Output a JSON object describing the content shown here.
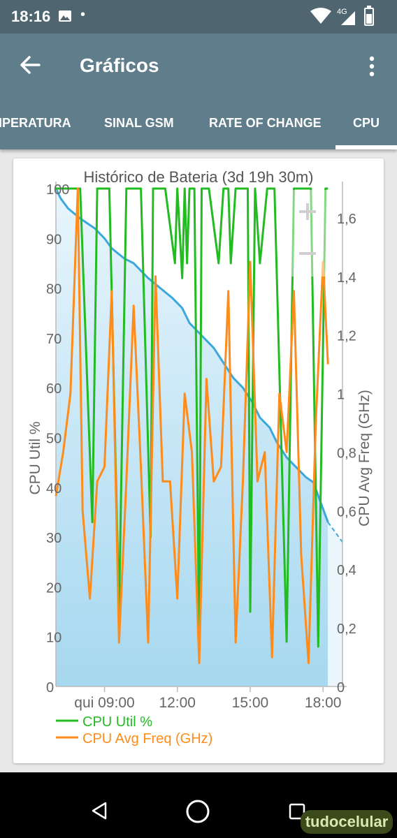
{
  "status_bar": {
    "time": "18:16",
    "network": "4G"
  },
  "app_bar": {
    "title": "Gráficos",
    "back_icon": "arrow-back-icon",
    "menu_icon": "more-vert-icon"
  },
  "tabs": [
    {
      "label": "IPERATURA"
    },
    {
      "label": "SINAL GSM"
    },
    {
      "label": "RATE OF CHANGE"
    },
    {
      "label": "CPU",
      "selected": true
    }
  ],
  "chart_data": {
    "type": "line",
    "title": "Histórico de Bateria (3d 19h 30m)",
    "ylabel": "CPU Util %",
    "y2label": "CPU Avg Freq (GHz)",
    "ylim": [
      0,
      100
    ],
    "y2lim": [
      0,
      1.7
    ],
    "yticks": [
      "0",
      "10",
      "20",
      "30",
      "40",
      "50",
      "60",
      "70",
      "80",
      "90",
      "100"
    ],
    "y2ticks": [
      "0",
      "0,2",
      "0,4",
      "0,6",
      "0,8",
      "1",
      "1,2",
      "1,4",
      "1,6"
    ],
    "xlim": [
      7.0,
      18.8
    ],
    "xticks": [
      {
        "x": 9,
        "label": "qui 09:00"
      },
      {
        "x": 12,
        "label": "12:00"
      },
      {
        "x": 15,
        "label": "15:00"
      },
      {
        "x": 18,
        "label": "18:00"
      }
    ],
    "legend": [
      "CPU Util %",
      "CPU Avg Freq (GHz)"
    ],
    "legend_placement": "bottom-left",
    "colors": {
      "cpu_util": "#22bb22",
      "cpu_freq": "#ff8c1a",
      "battery": "#3aa8dc",
      "battery_fill": "#a6d8f0"
    },
    "battery_level": {
      "x": [
        7.0,
        7.2,
        7.5,
        8.0,
        8.6,
        9.0,
        9.3,
        9.8,
        10.2,
        10.8,
        11.3,
        11.8,
        12.2,
        12.5,
        13.1,
        13.5,
        13.9,
        14.3,
        14.7,
        15.1,
        15.4,
        15.8,
        16.1,
        16.5,
        16.9,
        17.3,
        17.6,
        17.9,
        18.2
      ],
      "y": [
        100,
        98,
        96,
        94,
        92,
        90,
        88,
        86,
        85,
        82,
        80,
        78,
        76,
        73,
        70,
        68,
        65,
        62,
        60,
        57,
        54,
        52,
        49,
        46,
        44,
        42,
        41,
        37,
        33
      ],
      "projected_to": {
        "x": 18.8,
        "y": 29
      }
    },
    "series": [
      {
        "name": "CPU Util %",
        "axis": "left",
        "x": [
          7.0,
          7.2,
          7.9,
          8.0,
          8.5,
          8.7,
          9.0,
          9.2,
          9.6,
          9.9,
          10.2,
          10.5,
          10.9,
          11.0,
          11.3,
          11.5,
          11.9,
          12.0,
          12.2,
          12.3,
          12.4,
          12.5,
          12.6,
          12.7,
          12.9,
          13.0,
          13.3,
          13.7,
          13.9,
          14.1,
          14.2,
          14.4,
          14.6,
          14.9,
          15.0,
          15.2,
          15.4,
          15.7,
          16.0,
          16.5,
          16.8,
          17.0,
          17.5,
          17.8,
          18.1,
          18.2
        ],
        "y": [
          100,
          100,
          100,
          100,
          33,
          100,
          100,
          100,
          15,
          100,
          100,
          100,
          30,
          100,
          100,
          100,
          85,
          100,
          82,
          100,
          85,
          100,
          100,
          100,
          8,
          100,
          100,
          85,
          100,
          100,
          85,
          100,
          100,
          100,
          15,
          100,
          85,
          100,
          100,
          9,
          100,
          100,
          100,
          8,
          100,
          100
        ]
      },
      {
        "name": "CPU Avg Freq (GHz)",
        "axis": "right",
        "x": [
          7.0,
          7.3,
          7.6,
          7.9,
          8.1,
          8.4,
          8.7,
          9.0,
          9.3,
          9.6,
          9.9,
          10.2,
          10.5,
          10.8,
          11.1,
          11.4,
          11.7,
          12.0,
          12.3,
          12.6,
          12.9,
          13.2,
          13.5,
          13.8,
          14.1,
          14.4,
          14.7,
          15.0,
          15.3,
          15.6,
          15.9,
          16.2,
          16.5,
          16.8,
          17.1,
          17.4,
          17.7,
          18.0,
          18.2
        ],
        "y": [
          0.65,
          0.8,
          1.0,
          1.7,
          0.6,
          0.3,
          0.7,
          0.75,
          1.35,
          0.15,
          0.7,
          1.3,
          0.75,
          0.15,
          1.4,
          0.7,
          0.7,
          0.3,
          1.0,
          0.8,
          0.08,
          1.05,
          0.7,
          0.75,
          1.35,
          0.15,
          0.7,
          1.45,
          0.7,
          0.8,
          0.1,
          1.0,
          0.8,
          1.35,
          0.45,
          0.08,
          0.9,
          1.45,
          1.1
        ]
      }
    ]
  }
}
